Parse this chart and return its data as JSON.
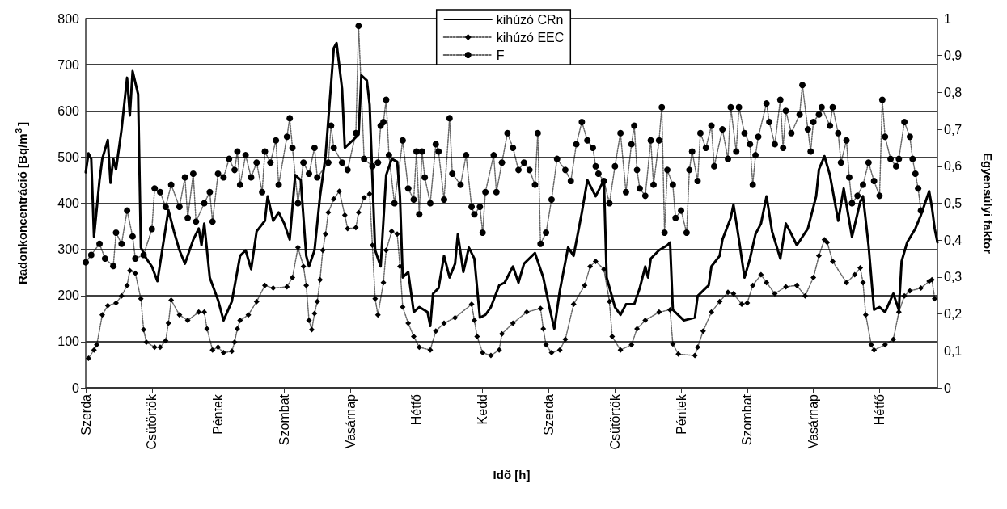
{
  "chart_data": {
    "type": "line",
    "xlabel": "Idõ [h]",
    "ylabel": "Radonkoncentráció [Bq/m$^{3}$]",
    "y2label": "Egyensúlyi faktor",
    "categories": [
      "Szerda",
      null,
      null,
      null,
      null,
      null,
      null,
      null,
      null,
      null,
      null,
      null,
      null,
      null,
      null,
      null,
      null,
      null,
      null,
      null,
      null,
      null,
      null,
      null,
      "Csütörtök",
      null,
      null,
      null,
      null,
      null,
      null,
      null,
      null,
      null,
      null,
      null,
      null,
      null,
      null,
      null,
      null,
      null,
      null,
      null,
      null,
      null,
      null,
      null,
      "Péntek",
      null,
      null,
      null,
      null,
      null,
      null,
      null,
      null,
      null,
      null,
      null,
      null,
      null,
      null,
      null,
      null,
      null,
      null,
      null,
      null,
      null,
      null,
      null,
      "Szombat",
      null,
      null,
      null,
      null,
      null,
      null,
      null,
      null,
      null,
      null,
      null,
      null,
      null,
      null,
      null,
      null,
      null,
      null,
      null,
      null,
      null,
      null,
      null,
      "Vasárnap",
      null,
      null,
      null,
      null,
      null,
      null,
      null,
      null,
      null,
      null,
      null,
      null,
      null,
      null,
      null,
      null,
      null,
      null,
      null,
      null,
      null,
      null,
      null,
      "Hétfő",
      null,
      null,
      null,
      null,
      null,
      null,
      null,
      null,
      null,
      null,
      null,
      null,
      null,
      null,
      null,
      null,
      null,
      null,
      null,
      null,
      null,
      null,
      null,
      "Kedd",
      null,
      null,
      null,
      null,
      null,
      null,
      null,
      null,
      null,
      null,
      null,
      null,
      null,
      null,
      null,
      null,
      null,
      null,
      null,
      null,
      null,
      null,
      null,
      "Szerda",
      null,
      null,
      null,
      null,
      null,
      null,
      null,
      null,
      null,
      null,
      null,
      null,
      null,
      null,
      null,
      null,
      null,
      null,
      null,
      null,
      null,
      null,
      null,
      "Csütörtök",
      null,
      null,
      null,
      null,
      null,
      null,
      null,
      null,
      null,
      null,
      null,
      null,
      null,
      null,
      null,
      null,
      null,
      null,
      null,
      null,
      null,
      null,
      null,
      "Péntek",
      null,
      null,
      null,
      null,
      null,
      null,
      null,
      null,
      null,
      null,
      null,
      null,
      null,
      null,
      null,
      null,
      null,
      null,
      null,
      null,
      null,
      null,
      null,
      "Szombat",
      null,
      null,
      null,
      null,
      null,
      null,
      null,
      null,
      null,
      null,
      null,
      null,
      null,
      null,
      null,
      null,
      null,
      null,
      null,
      null,
      null,
      null,
      null,
      "Vasárnap",
      null,
      null,
      null,
      null,
      null,
      null,
      null,
      null,
      null,
      null,
      null,
      null,
      null,
      null,
      null,
      null,
      null,
      null,
      null,
      null,
      null,
      null,
      null,
      "Hétfő",
      null,
      null,
      null,
      null,
      null,
      null,
      null,
      null,
      null,
      null,
      null,
      null,
      null,
      null,
      null,
      null,
      null,
      null,
      null,
      null,
      null
    ],
    "ylim": [
      0,
      800
    ],
    "yticks": [
      0,
      100,
      200,
      300,
      400,
      500,
      600,
      700,
      800
    ],
    "y2lim": [
      0,
      1
    ],
    "y2ticks": [
      0,
      {
        "value": 0.1,
        "label": "0,1"
      },
      {
        "value": 0.2,
        "label": "0,2"
      },
      {
        "value": 0.3,
        "label": "0,3"
      },
      {
        "value": 0.4,
        "label": "0,4"
      },
      {
        "value": 0.5,
        "label": "0,5"
      },
      {
        "value": 0.6,
        "label": "0,6"
      },
      {
        "value": 0.7,
        "label": "0,7"
      },
      {
        "value": 0.8,
        "label": "0,8"
      },
      {
        "value": 0.9,
        "label": "0,9"
      },
      1
    ],
    "grid": "y",
    "legend": "top",
    "series": [
      {
        "name": "kihúzó CRn",
        "color": "#000000",
        "marker": "none",
        "line_style": "solid",
        "values": [
          467,
          508,
          496,
          327,
          null,
          450,
          496,
          null,
          537,
          444,
          496,
          473,
          null,
          560,
          null,
          672,
          590,
          686,
          null,
          636,
          304,
          null,
          280,
          null,
          263,
          null,
          231,
          null,
          null,
          null,
          385,
          null,
          339,
          null,
          298,
          null,
          269,
          null,
          null,
          321,
          null,
          345,
          309,
          356,
          null,
          239,
          null,
          null,
          190,
          null,
          146,
          null,
          null,
          187,
          null,
          null,
          286,
          null,
          298,
          null,
          257,
          null,
          339,
          null,
          null,
          362,
          415,
          null,
          362,
          null,
          380,
          null,
          356,
          null,
          321,
          null,
          461,
          null,
          450,
          null,
          286,
          263,
          null,
          298,
          null,
          415,
          null,
          502,
          null,
          null,
          736,
          747,
          null,
          648,
          520,
          null,
          null,
          537,
          null,
          549,
          677,
          null,
          666,
          613,
          null,
          298,
          null,
          263,
          null,
          461,
          null,
          496,
          null,
          490,
          415,
          239,
          null,
          251,
          null,
          164,
          null,
          175,
          null,
          null,
          164,
          134,
          204,
          null,
          216,
          null,
          286,
          null,
          239,
          null,
          269,
          333,
          null,
          251,
          null,
          304,
          null,
          280,
          null,
          152,
          null,
          158,
          null,
          175,
          null,
          null,
          222,
          null,
          228,
          null,
          null,
          263,
          null,
          228,
          null,
          269,
          null,
          null,
          null,
          292,
          null,
          null,
          239,
          null,
          181,
          null,
          128,
          null,
          210,
          null,
          null,
          304,
          null,
          286,
          null,
          null,
          380,
          null,
          450,
          null,
          null,
          415,
          null,
          null,
          450,
          239,
          null,
          null,
          175,
          null,
          158,
          null,
          181,
          null,
          null,
          181,
          null,
          216,
          null,
          263,
          239,
          280,
          null,
          null,
          298,
          null,
          null,
          309,
          315,
          169,
          null,
          null,
          null,
          146,
          null,
          null,
          null,
          152,
          199,
          null,
          null,
          null,
          222,
          263,
          null,
          null,
          286,
          321,
          null,
          null,
          368,
          397,
          null,
          321,
          null,
          239,
          null,
          280,
          null,
          333,
          null,
          356,
          null,
          415,
          null,
          339,
          null,
          null,
          280,
          null,
          356,
          null,
          333,
          null,
          309,
          null,
          null,
          null,
          345,
          null,
          null,
          415,
          473,
          null,
          502,
          null,
          461,
          null,
          null,
          362,
          null,
          432,
          null,
          null,
          327,
          null,
          null,
          403,
          415,
          null,
          309,
          null,
          169,
          null,
          175,
          null,
          164,
          null,
          null,
          204,
          null,
          169,
          274,
          null,
          315,
          null,
          null,
          345,
          null,
          374,
          null,
          null,
          426,
          391,
          345,
          315
        ]
      },
      {
        "name": "kihúzó EEC",
        "color": "#000000",
        "marker": "diamond",
        "line_style": "dotted",
        "values": [
          null,
          64,
          null,
          82,
          93,
          null,
          158,
          null,
          178,
          null,
          null,
          184,
          null,
          199,
          null,
          222,
          254,
          null,
          248,
          null,
          193,
          126,
          99,
          null,
          null,
          88,
          null,
          88,
          null,
          102,
          140,
          190,
          null,
          null,
          158,
          null,
          null,
          146,
          null,
          null,
          null,
          164,
          null,
          164,
          128,
          null,
          82,
          null,
          88,
          null,
          76,
          null,
          null,
          79,
          99,
          128,
          146,
          null,
          null,
          158,
          null,
          null,
          187,
          null,
          null,
          222,
          null,
          null,
          216,
          null,
          null,
          null,
          null,
          219,
          null,
          239,
          null,
          304,
          null,
          263,
          222,
          146,
          126,
          161,
          187,
          234,
          298,
          333,
          380,
          null,
          409,
          null,
          426,
          null,
          374,
          345,
          null,
          null,
          347,
          380,
          null,
          412,
          null,
          420,
          309,
          193,
          158,
          null,
          228,
          298,
          null,
          339,
          null,
          333,
          263,
          175,
          null,
          140,
          null,
          111,
          null,
          88,
          null,
          null,
          null,
          82,
          null,
          123,
          null,
          null,
          140,
          null,
          null,
          null,
          152,
          null,
          null,
          null,
          null,
          null,
          181,
          146,
          111,
          null,
          76,
          null,
          null,
          70,
          null,
          null,
          82,
          117,
          null,
          null,
          null,
          140,
          null,
          null,
          null,
          null,
          164,
          null,
          null,
          null,
          null,
          172,
          128,
          93,
          null,
          76,
          null,
          null,
          82,
          null,
          105,
          null,
          null,
          181,
          null,
          null,
          null,
          222,
          null,
          263,
          null,
          274,
          null,
          null,
          257,
          null,
          187,
          111,
          null,
          null,
          82,
          null,
          null,
          null,
          93,
          null,
          128,
          null,
          null,
          146,
          null,
          null,
          null,
          null,
          164,
          null,
          null,
          null,
          169,
          95,
          null,
          73,
          null,
          null,
          null,
          null,
          null,
          70,
          88,
          null,
          123,
          null,
          null,
          164,
          null,
          null,
          187,
          null,
          null,
          207,
          null,
          204,
          null,
          null,
          181,
          null,
          184,
          null,
          222,
          null,
          null,
          245,
          null,
          228,
          null,
          null,
          204,
          null,
          null,
          null,
          219,
          null,
          null,
          null,
          222,
          null,
          null,
          199,
          null,
          null,
          239,
          null,
          286,
          null,
          321,
          315,
          null,
          274,
          null,
          null,
          null,
          null,
          228,
          null,
          null,
          245,
          null,
          260,
          228,
          158,
          null,
          93,
          82,
          null,
          null,
          null,
          93,
          null,
          null,
          105,
          null,
          164,
          null,
          199,
          null,
          210,
          null,
          null,
          null,
          216,
          null,
          null,
          231,
          234,
          193,
          null
        ]
      },
      {
        "name": "F",
        "color": "#000000",
        "marker": "circle",
        "line_style": "dotted",
        "axis": "y2",
        "values": [
          0.34,
          null,
          0.36,
          null,
          null,
          0.39,
          null,
          0.35,
          null,
          null,
          0.33,
          0.42,
          null,
          0.39,
          null,
          0.48,
          null,
          0.41,
          0.35,
          null,
          null,
          0.36,
          null,
          null,
          0.43,
          0.54,
          null,
          0.53,
          null,
          0.49,
          null,
          0.55,
          null,
          null,
          0.49,
          null,
          0.57,
          0.46,
          null,
          0.58,
          0.45,
          null,
          null,
          0.5,
          null,
          0.53,
          0.45,
          null,
          0.58,
          null,
          0.57,
          null,
          0.62,
          null,
          0.59,
          0.64,
          0.55,
          null,
          0.63,
          null,
          0.57,
          null,
          0.61,
          null,
          0.53,
          0.64,
          null,
          0.61,
          null,
          0.67,
          0.55,
          null,
          null,
          0.68,
          0.73,
          0.65,
          null,
          0.5,
          null,
          0.61,
          null,
          0.58,
          null,
          0.65,
          0.57,
          null,
          null,
          null,
          0.61,
          0.71,
          0.65,
          null,
          null,
          0.61,
          null,
          0.59,
          null,
          null,
          0.69,
          0.98,
          null,
          0.62,
          null,
          null,
          0.6,
          null,
          0.61,
          0.71,
          0.72,
          0.78,
          0.63,
          null,
          0.5,
          null,
          null,
          0.67,
          null,
          0.54,
          null,
          0.51,
          0.64,
          0.47,
          0.64,
          0.57,
          null,
          0.5,
          null,
          0.66,
          0.64,
          null,
          0.51,
          null,
          0.73,
          0.58,
          null,
          null,
          0.55,
          null,
          0.63,
          null,
          0.49,
          0.47,
          null,
          0.49,
          0.42,
          0.53,
          null,
          null,
          0.63,
          0.53,
          null,
          0.61,
          null,
          0.69,
          null,
          0.65,
          null,
          0.59,
          null,
          0.61,
          null,
          0.59,
          null,
          0.55,
          0.69,
          0.39,
          null,
          0.42,
          null,
          0.51,
          null,
          0.62,
          null,
          null,
          0.59,
          null,
          0.56,
          null,
          0.66,
          null,
          0.72,
          null,
          0.67,
          null,
          0.65,
          0.6,
          0.58,
          null,
          0.56,
          null,
          0.5,
          null,
          0.6,
          null,
          0.69,
          null,
          0.53,
          null,
          0.66,
          0.71,
          0.59,
          0.54,
          null,
          0.52,
          null,
          0.67,
          0.55,
          null,
          0.67,
          0.76,
          0.42,
          0.59,
          null,
          0.55,
          0.46,
          null,
          0.48,
          null,
          0.42,
          0.59,
          0.64,
          null,
          0.56,
          0.69,
          null,
          0.65,
          null,
          0.71,
          0.6,
          null,
          null,
          0.7,
          null,
          0.62,
          0.76,
          null,
          0.64,
          0.76,
          null,
          0.69,
          null,
          0.66,
          0.55,
          0.63,
          0.68,
          null,
          null,
          0.77,
          0.72,
          null,
          0.66,
          null,
          0.78,
          0.65,
          0.75,
          null,
          0.69,
          null,
          null,
          0.74,
          0.82,
          null,
          0.7,
          0.64,
          0.72,
          null,
          0.74,
          0.76,
          null,
          null,
          0.71,
          0.76,
          null,
          0.69,
          0.61,
          null,
          0.67,
          0.57,
          0.5,
          null,
          0.52,
          null,
          0.55,
          null,
          0.61,
          null,
          0.56,
          null,
          0.52,
          0.78,
          0.68,
          null,
          0.62,
          null,
          0.6,
          0.62,
          null,
          0.72,
          null,
          0.68,
          0.62,
          0.58,
          0.54,
          0.48,
          null,
          null,
          null,
          null,
          null,
          null
        ]
      }
    ]
  }
}
